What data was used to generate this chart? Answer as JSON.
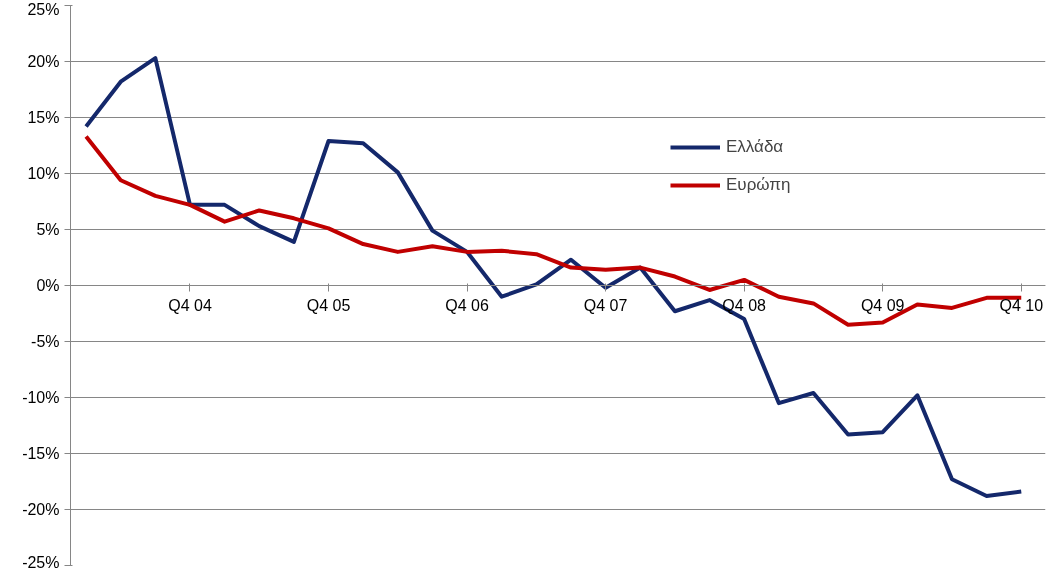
{
  "chart_data": {
    "type": "line",
    "categories": [
      null,
      null,
      null,
      "Q4 04",
      null,
      null,
      null,
      "Q4 05",
      null,
      null,
      null,
      "Q4 06",
      null,
      null,
      null,
      "Q4 07",
      null,
      null,
      null,
      "Q4 08",
      null,
      null,
      null,
      "Q4 09",
      null,
      null,
      null,
      "Q4 10"
    ],
    "series": [
      {
        "name": "Ελλάδα",
        "color": "#14286b",
        "values": [
          14.2,
          18.2,
          20.3,
          7.2,
          7.2,
          5.3,
          3.9,
          12.9,
          12.7,
          10.1,
          4.9,
          3.0,
          -1.0,
          0.1,
          2.3,
          -0.2,
          1.6,
          -2.3,
          -1.3,
          -3.0,
          -10.5,
          -9.6,
          -13.3,
          -13.1,
          -9.8,
          -17.3,
          -18.8,
          -18.4
        ]
      },
      {
        "name": "Ευρώπη",
        "color": "#c00000",
        "values": [
          13.3,
          9.4,
          8.0,
          7.2,
          5.7,
          6.7,
          6.0,
          5.1,
          3.7,
          3.0,
          3.5,
          3.0,
          3.1,
          2.8,
          1.6,
          1.4,
          1.6,
          0.8,
          -0.4,
          0.5,
          -1.0,
          -1.6,
          -3.5,
          -3.3,
          -1.7,
          -2.0,
          -1.1,
          -1.1
        ]
      }
    ],
    "ylim": [
      -25,
      25
    ],
    "yticks": [
      {
        "value": -25,
        "label": "-25%"
      },
      {
        "value": -20,
        "label": "-20%"
      },
      {
        "value": -15,
        "label": "-15%"
      },
      {
        "value": -10,
        "label": "-10%"
      },
      {
        "value": -5,
        "label": "-5%"
      },
      {
        "value": 0,
        "label": "0%"
      },
      {
        "value": 5,
        "label": "5%"
      },
      {
        "value": 10,
        "label": "10%"
      },
      {
        "value": 15,
        "label": "15%"
      },
      {
        "value": 20,
        "label": "20%"
      },
      {
        "value": 25,
        "label": "25%"
      }
    ],
    "grid": "y",
    "legend": "top right",
    "marker": "none",
    "line_style": "solid"
  }
}
